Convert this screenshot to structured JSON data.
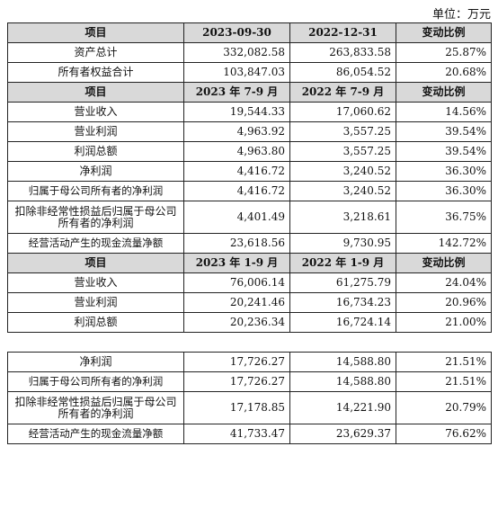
{
  "unit_label": "单位：万元",
  "sections": [
    {
      "header": [
        "项目",
        "2023-09-30",
        "2022-12-31",
        "变动比例"
      ],
      "rows": [
        [
          "资产总计",
          "332,082.58",
          "263,833.58",
          "25.87%"
        ],
        [
          "所有者权益合计",
          "103,847.03",
          "86,054.52",
          "20.68%"
        ]
      ]
    },
    {
      "header": [
        "项目",
        "2023 年 7-9 月",
        "2022 年 7-9 月",
        "变动比例"
      ],
      "rows": [
        [
          "营业收入",
          "19,544.33",
          "17,060.62",
          "14.56%"
        ],
        [
          "营业利润",
          "4,963.92",
          "3,557.25",
          "39.54%"
        ],
        [
          "利润总额",
          "4,963.80",
          "3,557.25",
          "39.54%"
        ],
        [
          "净利润",
          "4,416.72",
          "3,240.52",
          "36.30%"
        ],
        [
          "归属于母公司所有者的净利润",
          "4,416.72",
          "3,240.52",
          "36.30%"
        ],
        [
          "扣除非经常性损益后归属于母公司所有者的净利润",
          "4,401.49",
          "3,218.61",
          "36.75%"
        ],
        [
          "经营活动产生的现金流量净额",
          "23,618.56",
          "9,730.95",
          "142.72%"
        ]
      ]
    },
    {
      "header": [
        "项目",
        "2023 年 1-9 月",
        "2022 年 1-9 月",
        "变动比例"
      ],
      "rows": [
        [
          "营业收入",
          "76,006.14",
          "61,275.79",
          "24.04%"
        ],
        [
          "营业利润",
          "20,241.46",
          "16,734.23",
          "20.96%"
        ],
        [
          "利润总额",
          "20,236.34",
          "16,724.14",
          "21.00%"
        ]
      ]
    },
    {
      "rows": [
        [
          "净利润",
          "17,726.27",
          "14,588.80",
          "21.51%"
        ],
        [
          "归属于母公司所有者的净利润",
          "17,726.27",
          "14,588.80",
          "21.51%"
        ],
        [
          "扣除非经常性损益后归属于母公司所有者的净利润",
          "17,178.85",
          "14,221.90",
          "20.79%"
        ],
        [
          "经营活动产生的现金流量净额",
          "41,733.47",
          "23,629.37",
          "76.62%"
        ]
      ]
    }
  ]
}
